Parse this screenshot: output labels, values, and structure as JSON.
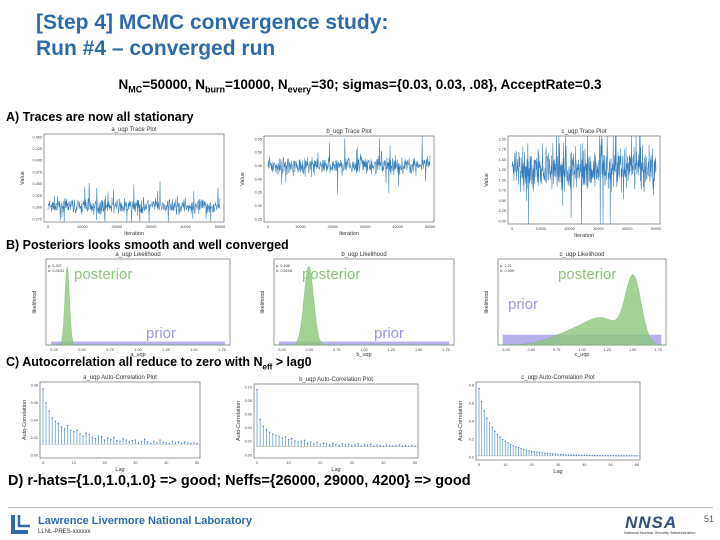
{
  "slide": {
    "title_line1": "[Step 4] MCMC convergence study:",
    "title_line2": "Run #4 – converged run",
    "params": {
      "n_mc": "N",
      "n_mc_sub": "MC",
      "n_mc_val": "=50000, ",
      "n_burn": "N",
      "n_burn_sub": "burn",
      "n_burn_val": "=10000, ",
      "n_every": "N",
      "n_every_sub": "every",
      "n_every_val": "=30; sigmas={0.03, 0.03, .08}, AcceptRate=0.3"
    },
    "section_a": "A) Traces are now all stationary",
    "section_b": "B) Posteriors looks smooth and well converged",
    "section_c_pre": "C) Autocorrelation all reduce to zero with N",
    "section_c_sub": "eff",
    "section_c_post": " > lag0",
    "section_d": "D) r-hats={1.0,1.0,1.0} => good; Neffs={26000, 29000, 4200} => good",
    "footer_lab": "Lawrence Livermore National Laboratory",
    "footer_code": "LLNL-PRES-xxxxxx",
    "footer_logo": "NNSA",
    "footer_logo_sub": "National Nuclear Security Administration",
    "page_number": "51",
    "colors": {
      "title": "#2f6aa8",
      "trace": "#1f6fb4",
      "posterior": "#8bc87a",
      "prior": "#9d97e6",
      "acf": "#6a9fd0"
    }
  },
  "chart_data": [
    {
      "id": "trace-a",
      "type": "line",
      "title": "a_uqp Trace Plot",
      "xlabel": "Iteration",
      "ylabel": "Value",
      "xticks": [
        "0",
        "10000",
        "20000",
        "30000",
        "40000",
        "50000"
      ],
      "yticks": [
        "0.275",
        "0.300",
        "0.325",
        "0.350",
        "0.375",
        "0.400",
        "0.425",
        "0.450"
      ],
      "xlim": [
        0,
        50000
      ],
      "ylim": [
        0.27,
        0.45
      ],
      "center": 0.302,
      "spread": 0.011
    },
    {
      "id": "trace-b",
      "type": "line",
      "title": "b_uqp Trace Plot",
      "xlabel": "Iteration",
      "ylabel": "Value",
      "xticks": [
        "0",
        "10000",
        "20000",
        "30000",
        "40000",
        "50000"
      ],
      "yticks": [
        "0.25",
        "0.30",
        "0.35",
        "0.40",
        "0.45",
        "0.50",
        "0.55"
      ],
      "xlim": [
        0,
        50000
      ],
      "ylim": [
        0.25,
        0.55
      ],
      "center": 0.447,
      "spread": 0.022
    },
    {
      "id": "trace-c",
      "type": "line",
      "title": "c_uqp Trace Plot",
      "xlabel": "Iteration",
      "ylabel": "Value",
      "xticks": [
        "0",
        "10000",
        "20000",
        "30000",
        "40000",
        "50000"
      ],
      "yticks": [
        "0.00",
        "0.25",
        "0.50",
        "0.75",
        "1.00",
        "1.25",
        "1.50",
        "1.75",
        "2.00"
      ],
      "xlim": [
        0,
        50000
      ],
      "ylim": [
        0,
        2.0
      ],
      "center": 1.25,
      "spread": 0.36
    },
    {
      "id": "post-a",
      "type": "area",
      "title": "a_uqp Likelihood",
      "xlabel": "a_uqp",
      "ylabel": "likelihood",
      "xticks": [
        "0.25",
        "0.50",
        "0.75",
        "1.00",
        "1.25",
        "1.50",
        "1.75"
      ],
      "xlim": [
        0.1,
        1.9
      ],
      "stats": [
        "μ: 0.307",
        "σ: 0.0101"
      ],
      "posterior_label": "posterior",
      "prior_label": "prior",
      "mu": 0.307,
      "sigma": 0.0101,
      "prior_height": 0.04
    },
    {
      "id": "post-b",
      "type": "area",
      "title": "b_uqp Likelihood",
      "xlabel": "b_uqp",
      "ylabel": "likelihood",
      "xticks": [
        "0.25",
        "0.50",
        "0.75",
        "1.00",
        "1.25",
        "1.50",
        "1.75"
      ],
      "xlim": [
        0.1,
        1.9
      ],
      "stats": [
        "μ: 0.448",
        "σ: 0.0216"
      ],
      "posterior_label": "posterior",
      "prior_label": "prior",
      "mu": 0.448,
      "sigma": 0.0216,
      "prior_height": 0.04
    },
    {
      "id": "post-c",
      "type": "area",
      "title": "c_uqp Likelihood",
      "xlabel": "c_uqp",
      "ylabel": "likelihood",
      "xticks": [
        "0.25",
        "0.50",
        "0.75",
        "1.00",
        "1.25",
        "1.50",
        "1.75"
      ],
      "xlim": [
        0.1,
        1.9
      ],
      "stats": [
        "μ: 1.21",
        "σ: 0.399"
      ],
      "posterior_label": "posterior",
      "prior_label": "prior",
      "mu": 1.21,
      "sigma": 0.399,
      "prior_height": 0.12
    },
    {
      "id": "acf-a",
      "type": "bar",
      "title": "a_uqp Auto-Correlation Plot",
      "xlabel": "Lag",
      "ylabel": "Auto-Correlation",
      "xticks": [
        "0",
        "10",
        "20",
        "30",
        "40",
        "50"
      ],
      "yticks": [
        "0.00",
        "0.02",
        "0.04",
        "0.06",
        "0.08"
      ],
      "ylim": [
        -0.02,
        0.09
      ],
      "values": [
        0.08,
        0.06,
        0.048,
        0.038,
        0.033,
        0.03,
        0.025,
        0.022,
        0.027,
        0.02,
        0.018,
        0.02,
        0.015,
        0.012,
        0.016,
        0.014,
        0.01,
        0.008,
        0.012,
        0.011,
        0.006,
        0.009,
        0.007,
        0.01,
        0.005,
        0.004,
        0.008,
        0.006,
        0.003,
        0.005,
        0.006,
        0.002,
        0.004,
        0.007,
        0.003,
        0.001,
        0.004,
        0.002,
        0.006,
        0.003,
        0.002,
        0.001,
        0.004,
        0.002,
        0.003,
        0.001,
        0.003,
        0.002,
        0.001,
        0.002,
        0.001
      ]
    },
    {
      "id": "acf-b",
      "type": "bar",
      "title": "b_uqp Auto-Correlation Plot",
      "xlabel": "Lag",
      "ylabel": "Auto-Correlation",
      "xticks": [
        "0",
        "10",
        "20",
        "30",
        "40",
        "50"
      ],
      "yticks": [
        "0.00",
        "0.02",
        "0.04",
        "0.06",
        "0.08",
        "0.10"
      ],
      "ylim": [
        -0.02,
        0.11
      ],
      "values": [
        0.1,
        0.048,
        0.036,
        0.03,
        0.025,
        0.022,
        0.02,
        0.018,
        0.015,
        0.017,
        0.012,
        0.014,
        0.01,
        0.008,
        0.009,
        0.011,
        0.006,
        0.008,
        0.005,
        0.007,
        0.004,
        0.006,
        0.005,
        0.003,
        0.006,
        0.004,
        0.002,
        0.005,
        0.003,
        0.004,
        0.002,
        0.003,
        0.005,
        0.001,
        0.003,
        0.002,
        0.004,
        0.001,
        0.003,
        0.002,
        0.001,
        0.003,
        0.002,
        0.001,
        0.002,
        0.003,
        0.001,
        0.002,
        0.001,
        0.002,
        0.001
      ]
    },
    {
      "id": "acf-c",
      "type": "bar",
      "title": "c_uqp Auto-Correlation Plot",
      "xlabel": "Lag",
      "ylabel": "Auto-Correlation",
      "xticks": [
        "0",
        "10",
        "20",
        "30",
        "40",
        "50",
        "60"
      ],
      "yticks": [
        "0.0",
        "0.2",
        "0.4",
        "0.6",
        "0.8"
      ],
      "ylim": [
        -0.05,
        0.9
      ],
      "values": [
        0.82,
        0.66,
        0.55,
        0.46,
        0.4,
        0.35,
        0.3,
        0.26,
        0.23,
        0.2,
        0.18,
        0.16,
        0.14,
        0.125,
        0.11,
        0.1,
        0.09,
        0.08,
        0.07,
        0.062,
        0.055,
        0.05,
        0.045,
        0.04,
        0.035,
        0.032,
        0.028,
        0.025,
        0.022,
        0.02,
        0.018,
        0.016,
        0.014,
        0.012,
        0.011,
        0.01,
        0.009,
        0.008,
        0.007,
        0.006,
        0.006,
        0.005,
        0.005,
        0.004,
        0.004,
        0.003,
        0.003,
        0.003,
        0.002,
        0.002,
        0.002,
        0.002,
        0.001,
        0.001,
        0.001,
        0.001,
        0.001,
        0.001,
        0.001,
        0.0,
        0.0
      ]
    }
  ]
}
